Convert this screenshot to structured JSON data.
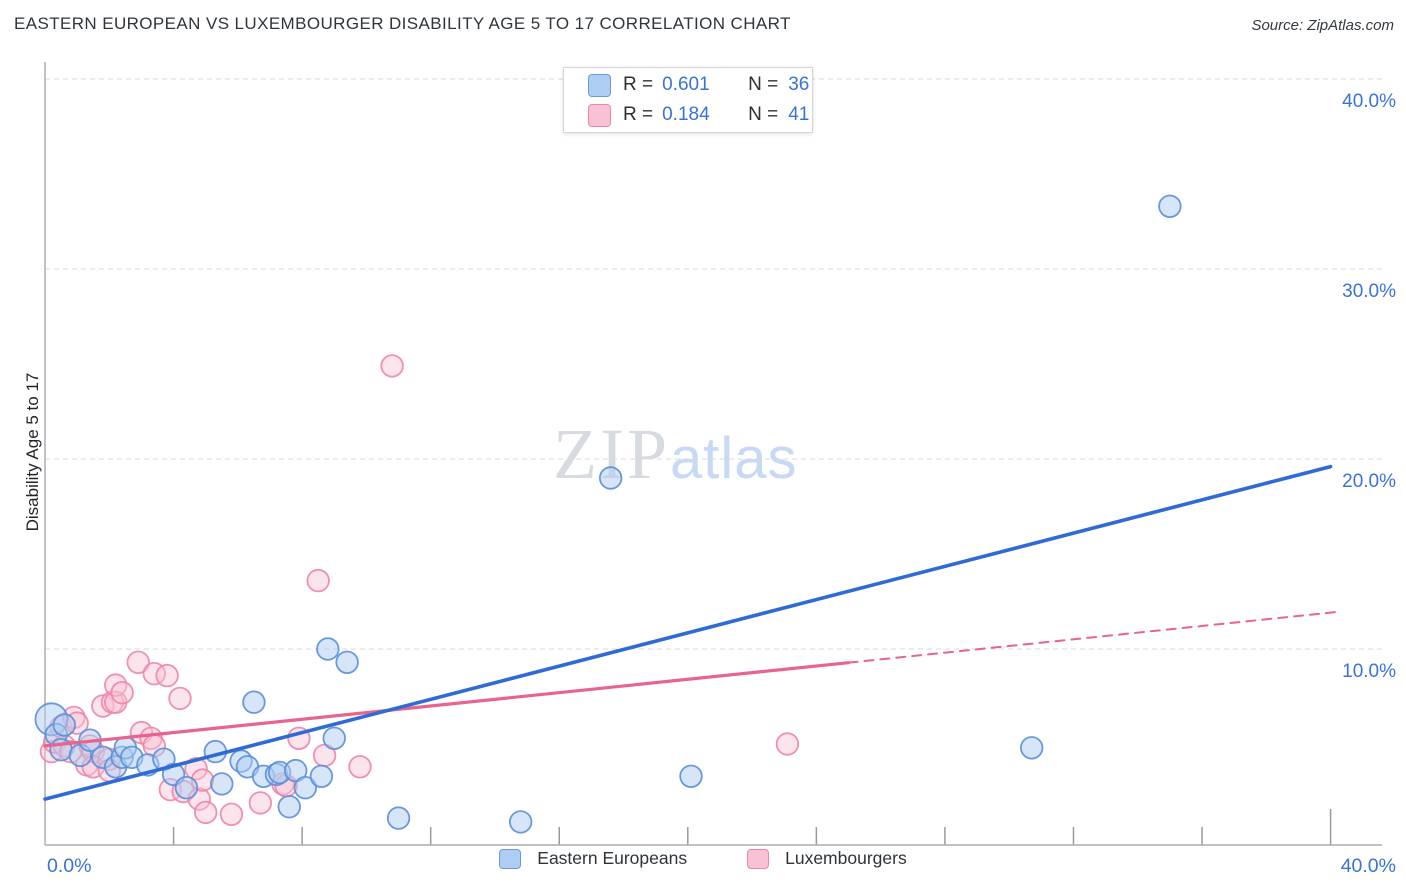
{
  "header": {
    "title": "EASTERN EUROPEAN VS LUXEMBOURGER DISABILITY AGE 5 TO 17 CORRELATION CHART",
    "source": "Source: ZipAtlas.com"
  },
  "correlation_legend": {
    "rows": [
      {
        "series": "Eastern Europeans",
        "r_label": "R =",
        "r_value": "0.601",
        "n_label": "N =",
        "n_value": "36"
      },
      {
        "series": "Luxembourgers",
        "r_label": "R =",
        "r_value": "0.184",
        "n_label": "N =",
        "n_value": "41"
      }
    ]
  },
  "bottom_legend": {
    "items": [
      {
        "label": "Eastern Europeans",
        "color_key": "blue"
      },
      {
        "label": "Luxembourgers",
        "color_key": "pink"
      }
    ]
  },
  "watermark": {
    "part1": "ZIP",
    "part2": "atlas"
  },
  "axes": {
    "y_title": "Disability Age 5 to 17",
    "x_min_label": "0.0%",
    "x_max_label": "40.0%",
    "y_tick_labels": [
      "40.0%",
      "30.0%",
      "20.0%",
      "10.0%"
    ]
  },
  "colors": {
    "accent_blue_text": "#3b72d8",
    "axis_line": "#adadad",
    "tick_mark": "#9a9a9a",
    "gridline": "#d9d9d9",
    "blue_fill": "#aecdf2",
    "blue_stroke": "#5b8ed9",
    "pink_fill": "#f9c4d5",
    "pink_stroke": "#ee85a7",
    "blue_line": "#2e6bd4",
    "pink_line": "#e8638e",
    "swatch_blue_fill": "#aecdf2",
    "swatch_blue_border": "#6b9bd8",
    "swatch_pink_fill": "#f9c2d4",
    "swatch_pink_border": "#ea86aa"
  },
  "chart_data": {
    "type": "scatter",
    "title": "EASTERN EUROPEAN VS LUXEMBOURGER DISABILITY AGE 5 TO 17 CORRELATION CHART",
    "xlabel": "",
    "ylabel": "Disability Age 5 to 17",
    "x_unit": "%",
    "y_unit": "%",
    "xlim": [
      0,
      40
    ],
    "ylim": [
      0,
      41
    ],
    "y_gridlines": [
      40,
      30,
      20,
      10
    ],
    "x_ticks_minor": [
      4,
      8,
      12,
      16,
      20,
      24,
      28,
      32,
      36
    ],
    "x_ticks_major": [
      40
    ],
    "grid": "dashed-horizontal",
    "legend_position": "top-center",
    "series": [
      {
        "name": "Luxembourgers",
        "R": 0.184,
        "N": 41,
        "color_key": "pink",
        "points": [
          [
            0.2,
            4.6
          ],
          [
            0.3,
            5.1
          ],
          [
            0.5,
            5.9
          ],
          [
            0.6,
            4.9
          ],
          [
            0.8,
            4.6
          ],
          [
            0.9,
            6.4
          ],
          [
            1.0,
            6.1
          ],
          [
            1.3,
            3.9
          ],
          [
            1.4,
            4.9
          ],
          [
            1.5,
            4.6
          ],
          [
            1.5,
            3.8
          ],
          [
            1.8,
            7.0
          ],
          [
            2.0,
            4.2
          ],
          [
            2.0,
            3.6
          ],
          [
            2.1,
            7.2
          ],
          [
            2.2,
            7.2
          ],
          [
            2.2,
            8.1
          ],
          [
            2.4,
            7.7
          ],
          [
            2.9,
            9.3
          ],
          [
            3.0,
            5.6
          ],
          [
            3.3,
            5.3
          ],
          [
            3.4,
            8.7
          ],
          [
            3.4,
            4.9
          ],
          [
            3.8,
            8.6
          ],
          [
            3.9,
            2.6
          ],
          [
            4.2,
            7.4
          ],
          [
            4.3,
            2.5
          ],
          [
            4.7,
            3.7
          ],
          [
            4.8,
            2.1
          ],
          [
            4.9,
            3.1
          ],
          [
            5.0,
            1.4
          ],
          [
            5.8,
            1.3
          ],
          [
            6.7,
            1.9
          ],
          [
            7.4,
            2.9
          ],
          [
            7.5,
            2.8
          ],
          [
            7.9,
            5.3
          ],
          [
            8.5,
            13.6
          ],
          [
            8.7,
            4.4
          ],
          [
            9.8,
            3.8
          ],
          [
            10.8,
            24.9
          ],
          [
            23.1,
            5.0
          ]
        ]
      },
      {
        "name": "Eastern Europeans",
        "R": 0.601,
        "N": 36,
        "color_key": "blue",
        "points": [
          [
            0.2,
            6.3,
            16
          ],
          [
            0.35,
            5.5
          ],
          [
            0.6,
            6.0
          ],
          [
            0.5,
            4.7
          ],
          [
            1.1,
            4.4
          ],
          [
            1.4,
            5.2
          ],
          [
            1.8,
            4.3
          ],
          [
            2.2,
            3.8
          ],
          [
            2.4,
            4.3
          ],
          [
            2.5,
            4.8
          ],
          [
            2.7,
            4.3
          ],
          [
            3.2,
            3.9
          ],
          [
            3.7,
            4.2
          ],
          [
            4.0,
            3.4
          ],
          [
            4.4,
            2.7
          ],
          [
            5.3,
            4.6
          ],
          [
            5.5,
            2.9
          ],
          [
            6.1,
            4.1
          ],
          [
            6.3,
            3.8
          ],
          [
            6.5,
            7.2
          ],
          [
            6.8,
            3.3
          ],
          [
            7.2,
            3.4
          ],
          [
            7.3,
            3.5
          ],
          [
            7.6,
            1.7
          ],
          [
            7.8,
            3.6
          ],
          [
            8.1,
            2.7
          ],
          [
            8.6,
            3.3
          ],
          [
            8.8,
            10.0
          ],
          [
            9.0,
            5.3
          ],
          [
            9.4,
            9.3
          ],
          [
            11.0,
            1.1
          ],
          [
            14.8,
            0.9
          ],
          [
            17.6,
            19.0
          ],
          [
            20.1,
            3.3
          ],
          [
            30.7,
            4.8
          ],
          [
            35.0,
            33.3
          ]
        ]
      }
    ],
    "trendlines": [
      {
        "series": "Luxembourgers",
        "color_key": "pink_line",
        "from": [
          0,
          4.9
        ],
        "solid_to": [
          25,
          9.28
        ],
        "to": [
          40.2,
          11.95
        ],
        "style": "solid-then-dashed",
        "width": 3.2
      },
      {
        "series": "Eastern Europeans",
        "color_key": "blue_line",
        "from": [
          0,
          2.1
        ],
        "to": [
          40,
          19.6
        ],
        "style": "solid",
        "width": 3.6
      }
    ]
  }
}
